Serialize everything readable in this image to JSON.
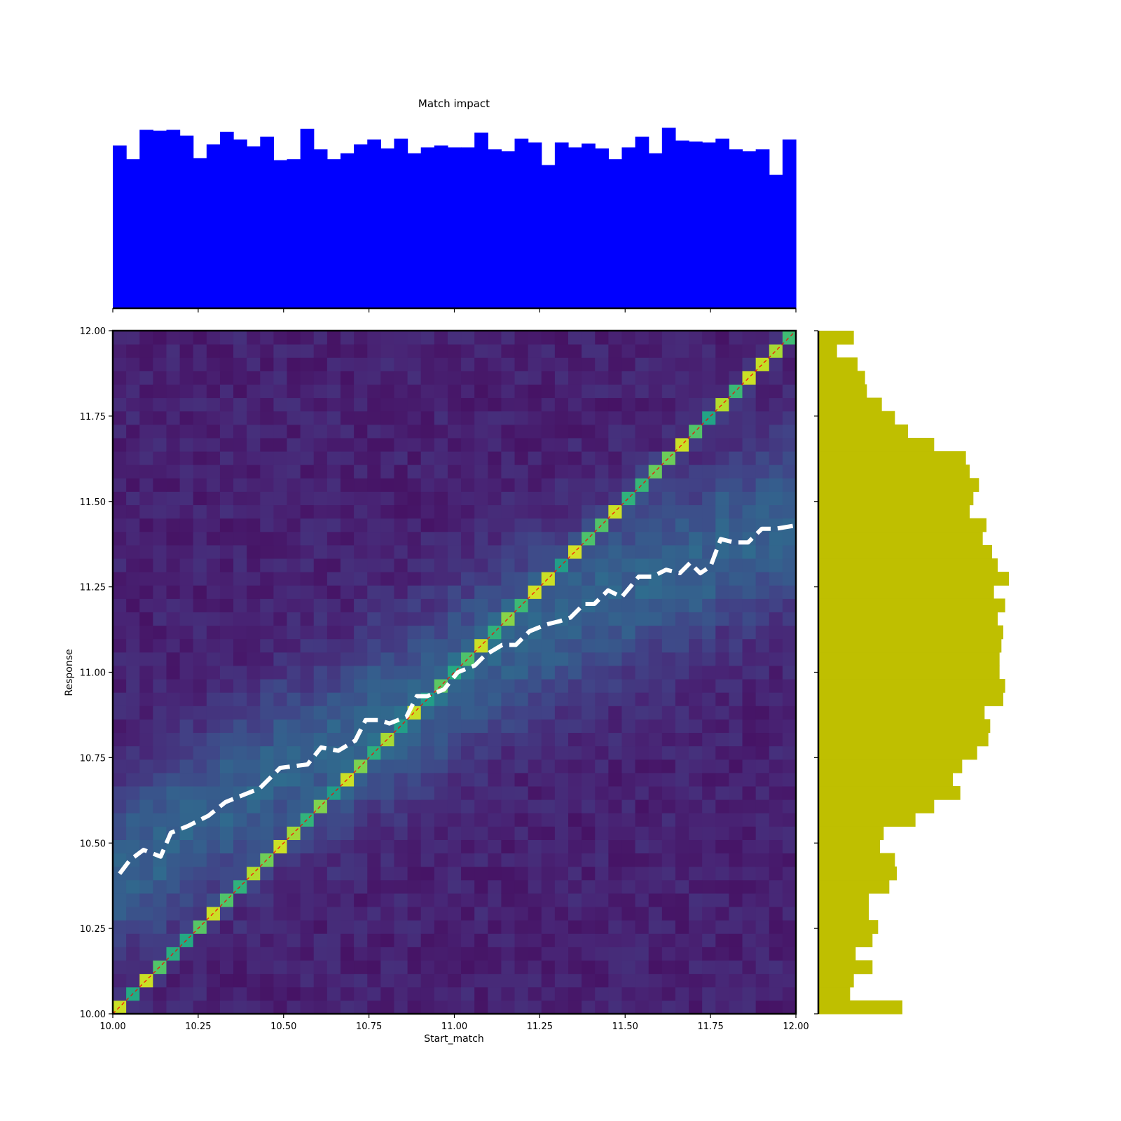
{
  "chart_data": [
    {
      "id": "top_histogram",
      "type": "bar",
      "title": "Match impact",
      "color": "#0000ff",
      "x_range": [
        10.0,
        12.0
      ],
      "bin_width": 0.04,
      "y_range": [
        0,
        1
      ],
      "values": [
        0.83,
        0.76,
        0.91,
        0.905,
        0.91,
        0.88,
        0.765,
        0.835,
        0.9,
        0.86,
        0.825,
        0.875,
        0.755,
        0.76,
        0.915,
        0.81,
        0.76,
        0.79,
        0.835,
        0.86,
        0.815,
        0.865,
        0.79,
        0.82,
        0.83,
        0.82,
        0.82,
        0.895,
        0.81,
        0.8,
        0.865,
        0.845,
        0.73,
        0.845,
        0.82,
        0.84,
        0.815,
        0.76,
        0.82,
        0.875,
        0.79,
        0.92,
        0.855,
        0.85,
        0.845,
        0.865,
        0.81,
        0.8,
        0.81,
        0.68,
        0.86
      ],
      "grid": false
    },
    {
      "id": "joint_heatmap",
      "type": "heatmap",
      "xlabel": "Start_match",
      "ylabel": "Response",
      "x_range": [
        10.0,
        12.0
      ],
      "y_range": [
        10.0,
        12.0
      ],
      "x_ticks": [
        "10.00",
        "10.25",
        "10.50",
        "10.75",
        "11.00",
        "11.25",
        "11.50",
        "11.75",
        "12.00"
      ],
      "y_ticks": [
        "10.00",
        "10.25",
        "10.50",
        "10.75",
        "11.00",
        "11.25",
        "11.50",
        "11.75",
        "12.00"
      ],
      "bins": 51,
      "colormap": "viridis",
      "identity_line": {
        "from": [
          10.0,
          10.0
        ],
        "to": [
          12.0,
          12.0
        ],
        "color": "#ff0000",
        "style": "dashed"
      },
      "trend_line": {
        "color": "#ffffff",
        "style": "dashed",
        "points": [
          [
            10.02,
            10.41
          ],
          [
            10.05,
            10.45
          ],
          [
            10.09,
            10.48
          ],
          [
            10.14,
            10.46
          ],
          [
            10.17,
            10.53
          ],
          [
            10.22,
            10.55
          ],
          [
            10.28,
            10.58
          ],
          [
            10.33,
            10.62
          ],
          [
            10.38,
            10.64
          ],
          [
            10.43,
            10.66
          ],
          [
            10.49,
            10.72
          ],
          [
            10.57,
            10.73
          ],
          [
            10.61,
            10.78
          ],
          [
            10.66,
            10.77
          ],
          [
            10.71,
            10.8
          ],
          [
            10.74,
            10.86
          ],
          [
            10.78,
            10.86
          ],
          [
            10.81,
            10.85
          ],
          [
            10.86,
            10.87
          ],
          [
            10.89,
            10.93
          ],
          [
            10.92,
            10.93
          ],
          [
            10.97,
            10.95
          ],
          [
            11.01,
            11.0
          ],
          [
            11.06,
            11.02
          ],
          [
            11.09,
            11.05
          ],
          [
            11.14,
            11.08
          ],
          [
            11.18,
            11.08
          ],
          [
            11.22,
            11.12
          ],
          [
            11.27,
            11.14
          ],
          [
            11.31,
            11.15
          ],
          [
            11.34,
            11.16
          ],
          [
            11.38,
            11.2
          ],
          [
            11.41,
            11.2
          ],
          [
            11.45,
            11.24
          ],
          [
            11.49,
            11.22
          ],
          [
            11.54,
            11.28
          ],
          [
            11.58,
            11.28
          ],
          [
            11.62,
            11.3
          ],
          [
            11.66,
            11.29
          ],
          [
            11.69,
            11.32
          ],
          [
            11.72,
            11.29
          ],
          [
            11.75,
            11.31
          ],
          [
            11.78,
            11.39
          ],
          [
            11.82,
            11.38
          ],
          [
            11.86,
            11.38
          ],
          [
            11.9,
            11.42
          ],
          [
            11.94,
            11.42
          ],
          [
            12.0,
            11.43
          ]
        ]
      },
      "grid": false
    },
    {
      "id": "right_histogram",
      "type": "bar",
      "orientation": "horizontal",
      "color": "#bfbf00",
      "y_range": [
        10.0,
        12.0
      ],
      "bin_width": 0.04,
      "values": [
        0.45,
        0.17,
        0.19,
        0.29,
        0.2,
        0.29,
        0.32,
        0.27,
        0.27,
        0.38,
        0.42,
        0.41,
        0.33,
        0.35,
        0.52,
        0.62,
        0.76,
        0.72,
        0.77,
        0.85,
        0.91,
        0.92,
        0.89,
        0.99,
        1.0,
        0.97,
        0.97,
        0.98,
        0.99,
        0.96,
        1.0,
        0.94,
        1.02,
        0.96,
        0.93,
        0.88,
        0.9,
        0.81,
        0.83,
        0.86,
        0.81,
        0.79,
        0.62,
        0.48,
        0.41,
        0.34,
        0.26,
        0.25,
        0.21,
        0.1,
        0.19
      ],
      "grid": false
    }
  ]
}
